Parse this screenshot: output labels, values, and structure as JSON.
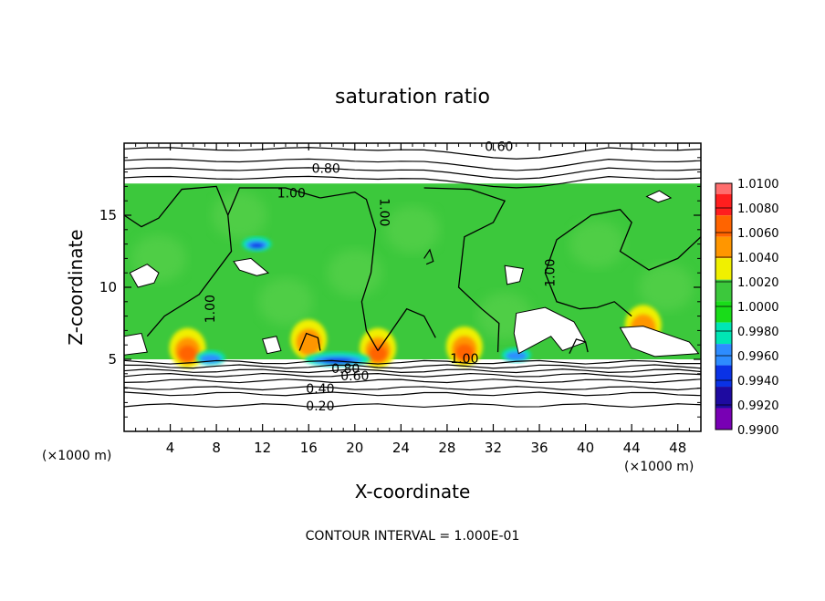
{
  "chart_data": {
    "type": "heatmap",
    "title": "saturation ratio",
    "xlabel": "X-coordinate",
    "ylabel": "Z-coordinate",
    "x_unit_left": "(×1000 m)",
    "x_unit_right": "(×1000 m)",
    "xlim": [
      0,
      50
    ],
    "ylim": [
      0,
      20
    ],
    "x_ticks": [
      4,
      8,
      12,
      16,
      20,
      24,
      28,
      32,
      36,
      40,
      44,
      48
    ],
    "y_ticks": [
      5,
      10,
      15
    ],
    "colorbar": {
      "levels": [
        "1.0100",
        "1.0080",
        "1.0060",
        "1.0040",
        "1.0020",
        "1.0000",
        "0.9980",
        "0.9960",
        "0.9940",
        "0.9920",
        "0.9900"
      ],
      "colors": [
        "#ff6e6e",
        "#ff1e1e",
        "#ff6400",
        "#ff9600",
        "#f0f000",
        "#3cc83c",
        "#19dc19",
        "#00e6b4",
        "#2d8cff",
        "#0a32e6",
        "#1e0aa0",
        "#7800b4"
      ]
    },
    "field": {
      "background_value": 1.0,
      "moist_layer_z": [
        5.0,
        17.2
      ],
      "maxima": [
        {
          "x": 5.5,
          "z": 5.4,
          "value": 1.006
        },
        {
          "x": 22.0,
          "z": 5.4,
          "value": 1.006
        },
        {
          "x": 29.5,
          "z": 5.5,
          "value": 1.007
        },
        {
          "x": 16.0,
          "z": 6.0,
          "value": 1.003
        },
        {
          "x": 45.0,
          "z": 7.0,
          "value": 1.003
        }
      ],
      "minima": [
        {
          "x": 18.5,
          "z": 5.0,
          "value": 0.992
        },
        {
          "x": 7.5,
          "z": 5.1,
          "value": 0.994
        },
        {
          "x": 34.0,
          "z": 5.3,
          "value": 0.994
        },
        {
          "x": 11.5,
          "z": 13.0,
          "value": 0.993
        }
      ]
    },
    "contour_labels": [
      {
        "text": "0.60",
        "x": 32.5,
        "z": 19.7
      },
      {
        "text": "0.80",
        "x": 17.5,
        "z": 18.2
      },
      {
        "text": "1.00",
        "x": 14.5,
        "z": 16.5
      },
      {
        "text": "1.00",
        "x": 22.5,
        "z": 15.2,
        "rotate": 90
      },
      {
        "text": "1.00",
        "x": 7.5,
        "z": 8.5,
        "rotate": -90
      },
      {
        "text": "1.00",
        "x": 37.0,
        "z": 11.0,
        "rotate": -90
      },
      {
        "text": "1.00",
        "x": 29.5,
        "z": 5.0
      },
      {
        "text": "0.80",
        "x": 19.2,
        "z": 4.3
      },
      {
        "text": "0.60",
        "x": 20.0,
        "z": 3.8
      },
      {
        "text": "0.40",
        "x": 17.0,
        "z": 2.9
      },
      {
        "text": "0.20",
        "x": 17.0,
        "z": 1.7
      }
    ],
    "footer": "CONTOUR INTERVAL = 1.000E-01"
  }
}
